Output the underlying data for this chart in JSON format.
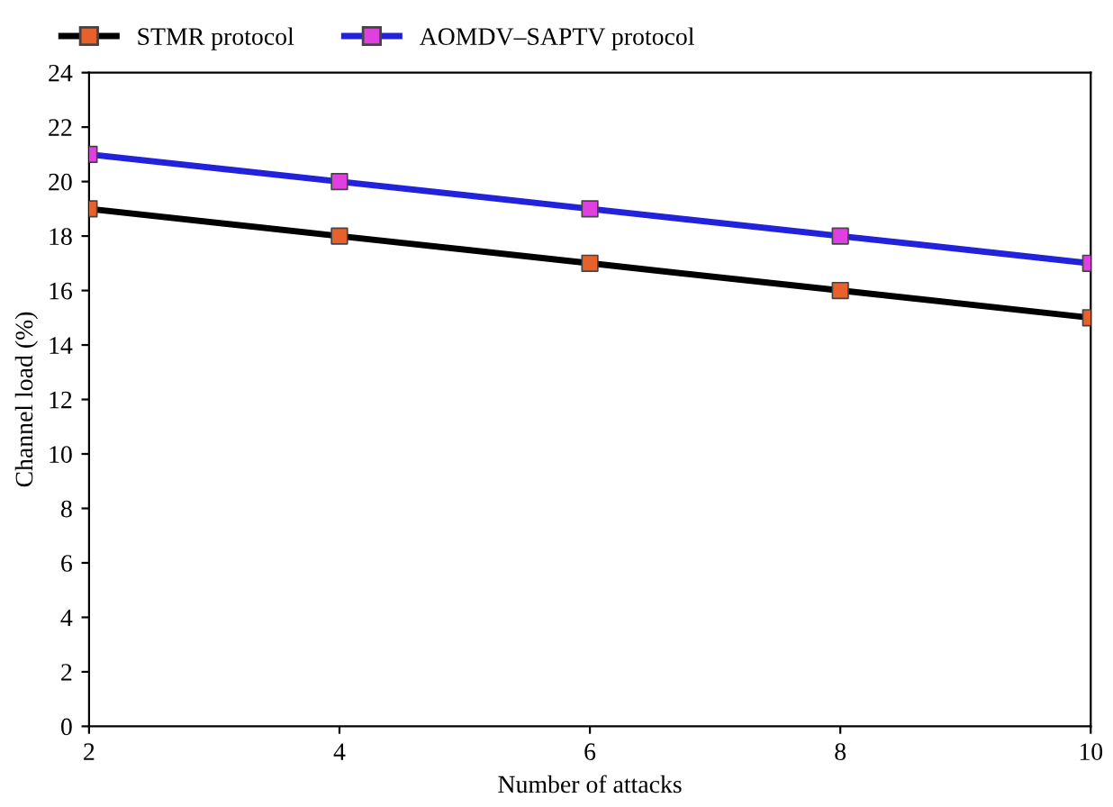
{
  "chart_data": {
    "type": "line",
    "xlabel": "Number of attacks",
    "ylabel": "Channel load (%)",
    "x": [
      2,
      4,
      6,
      8,
      10
    ],
    "series": [
      {
        "name": "STMR protocol",
        "color": "#000000",
        "colors": [
          "#e8602c",
          "#e8602c",
          "#e8602c",
          "#e8602c",
          "#e8602c"
        ],
        "values": [
          19,
          18,
          17,
          16,
          15
        ]
      },
      {
        "name": "AOMDV–SAPTV protocol",
        "color": "#2222dd",
        "colors": [
          "#e040e0",
          "#e040e0",
          "#e040e0",
          "#e040e0",
          "#e040e0"
        ],
        "values": [
          21,
          20,
          19,
          18,
          17
        ]
      }
    ],
    "xlim": [
      2,
      10
    ],
    "xticks": [
      2,
      4,
      6,
      8,
      10
    ],
    "ylim": [
      0,
      24
    ],
    "yticks": [
      0,
      2,
      4,
      6,
      8,
      10,
      12,
      14,
      16,
      18,
      20,
      22,
      24
    ],
    "grid": false,
    "legend": "top left",
    "marker": "square",
    "line_style": "solid"
  }
}
